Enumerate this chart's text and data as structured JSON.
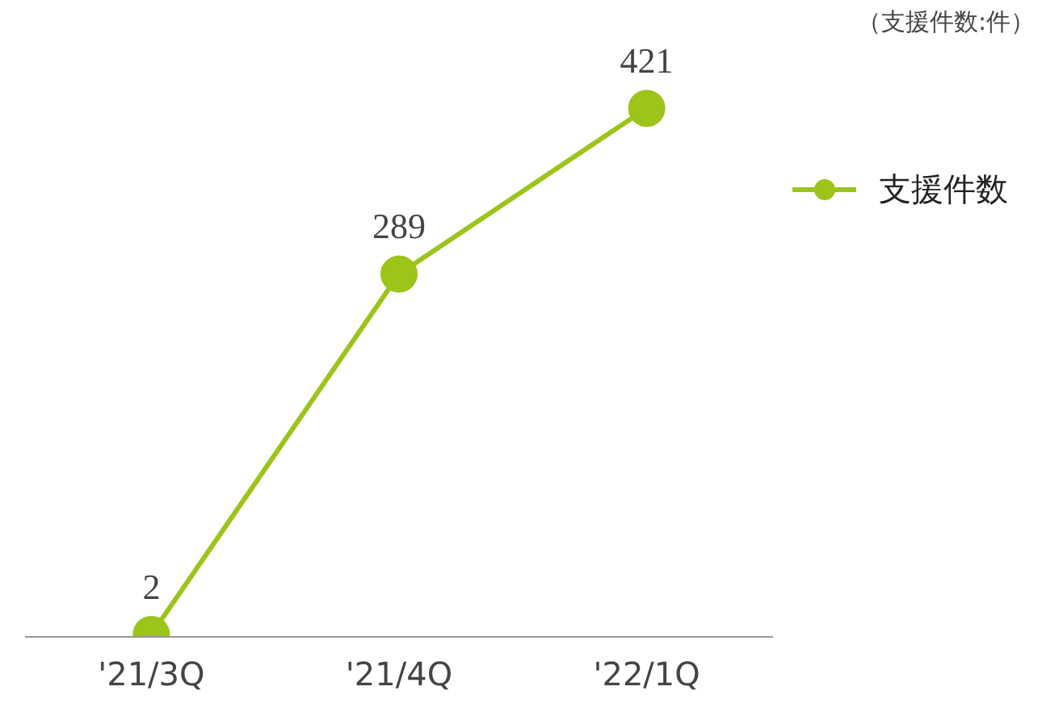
{
  "chart_data": {
    "type": "line",
    "categories": [
      "'21/3Q",
      "'21/4Q",
      "'22/1Q"
    ],
    "series": [
      {
        "name": "支援件数",
        "color": "#9dc41a",
        "values": [
          2,
          289,
          421
        ]
      }
    ],
    "data_labels": true,
    "marker": "circle",
    "line_style": "solid",
    "legend": "right",
    "grid": false,
    "tick_labels": "x",
    "annotations": [
      "（支援件数:件）"
    ]
  }
}
